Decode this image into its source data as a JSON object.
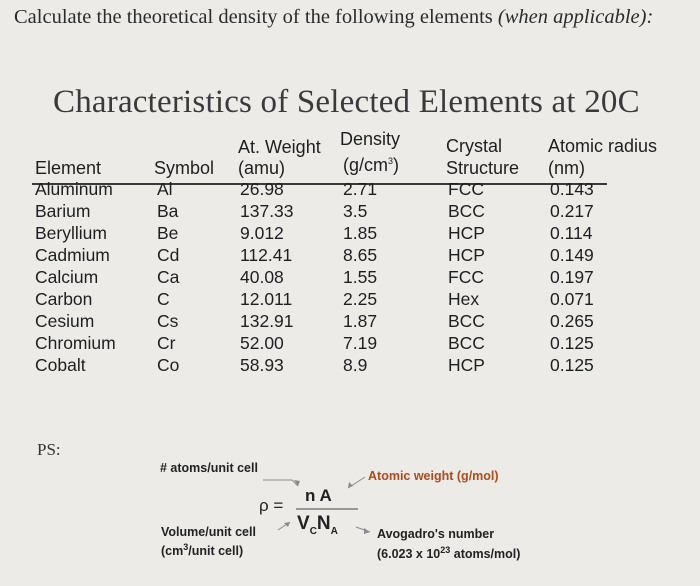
{
  "prompt": {
    "text": "Calculate the theoretical density of the following elements ",
    "italic": "(when applicable):"
  },
  "table": {
    "title": "Characteristics of Selected Elements at 20C",
    "headers": {
      "element": "Element",
      "symbol": "Symbol",
      "at_weight_1": "At. Weight",
      "at_weight_2": "(amu)",
      "density_1": "Density",
      "density_2": "(g/cm",
      "density_sup": "3",
      "density_3": ")",
      "crystal_1": "Crystal",
      "crystal_2": "Structure",
      "radius_1": "Atomic radius",
      "radius_2": "(nm)"
    },
    "rows": [
      {
        "element": "Aluminum",
        "symbol": "Al",
        "weight": "26.98",
        "density": "2.71",
        "structure": "FCC",
        "radius": "0.143"
      },
      {
        "element": "Barium",
        "symbol": "Ba",
        "weight": "137.33",
        "density": "3.5",
        "structure": "BCC",
        "radius": "0.217"
      },
      {
        "element": "Beryllium",
        "symbol": "Be",
        "weight": "9.012",
        "density": "1.85",
        "structure": "HCP",
        "radius": "0.114"
      },
      {
        "element": "Cadmium",
        "symbol": "Cd",
        "weight": "112.41",
        "density": "8.65",
        "structure": "HCP",
        "radius": "0.149"
      },
      {
        "element": "Calcium",
        "symbol": "Ca",
        "weight": "40.08",
        "density": "1.55",
        "structure": "FCC",
        "radius": "0.197"
      },
      {
        "element": "Carbon",
        "symbol": "C",
        "weight": "12.011",
        "density": "2.25",
        "structure": "Hex",
        "radius": "0.071"
      },
      {
        "element": "Cesium",
        "symbol": "Cs",
        "weight": "132.91",
        "density": "1.87",
        "structure": "BCC",
        "radius": "0.265"
      },
      {
        "element": "Chromium",
        "symbol": "Cr",
        "weight": "52.00",
        "density": "7.19",
        "structure": "BCC",
        "radius": "0.125"
      },
      {
        "element": "Cobalt",
        "symbol": "Co",
        "weight": "58.93",
        "density": "8.9",
        "structure": "HCP",
        "radius": "0.125"
      }
    ]
  },
  "ps_label": "PS:",
  "formula": {
    "atoms_label": "# atoms/unit cell",
    "atomic_weight_label": "Atomic weight (g/mol)",
    "rho": "ρ =",
    "numerator": "n A",
    "denom_v": "V",
    "denom_c": "C",
    "denom_n": "N",
    "denom_a": "A",
    "volume_label": "Volume/unit cell",
    "volume_unit_1": "(cm",
    "volume_unit_sup": "3",
    "volume_unit_2": "/unit cell)",
    "avogadro_label": "Avogadro's number",
    "avogadro_val_1": "(6.023 x 10",
    "avogadro_val_sup": "23",
    "avogadro_val_2": " atoms/mol)"
  }
}
